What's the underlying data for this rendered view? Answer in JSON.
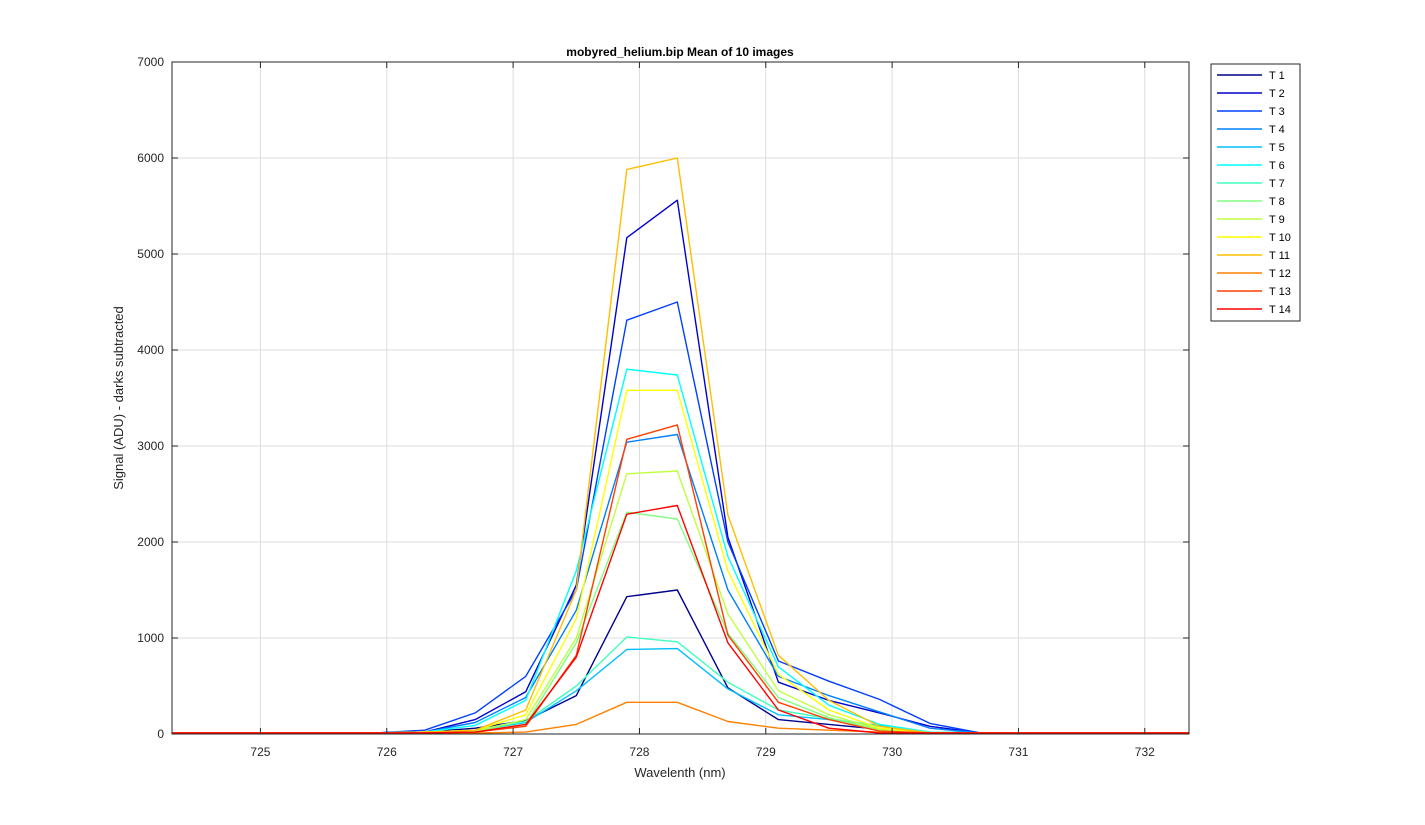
{
  "chart_data": {
    "type": "line",
    "title": "mobyred_helium.bip  Mean of 10 images",
    "xlabel": "Wavelenth (nm)",
    "ylabel": "Signal (ADU) - darks subtracted",
    "xlim": [
      724.3,
      732.35
    ],
    "ylim": [
      0,
      7000
    ],
    "xticks": [
      725,
      726,
      727,
      728,
      729,
      730,
      731,
      732
    ],
    "yticks": [
      0,
      1000,
      2000,
      3000,
      4000,
      5000,
      6000,
      7000
    ],
    "grid": true,
    "legend_position": "outside-top-right",
    "x": [
      724.3,
      724.7,
      725.1,
      725.5,
      725.9,
      726.3,
      726.7,
      727.1,
      727.5,
      727.9,
      728.3,
      728.7,
      729.1,
      729.5,
      729.9,
      730.3,
      730.7,
      731.1,
      731.5,
      731.9,
      732.35
    ],
    "series": [
      {
        "name": "T 1",
        "color": "#00008f",
        "values": [
          10,
          10,
          10,
          10,
          10,
          20,
          60,
          140,
          400,
          1430,
          1500,
          480,
          150,
          100,
          50,
          20,
          10,
          10,
          10,
          10,
          10
        ]
      },
      {
        "name": "T 2",
        "color": "#0000d0",
        "values": [
          10,
          10,
          10,
          10,
          10,
          20,
          150,
          440,
          1550,
          5170,
          5560,
          2050,
          540,
          350,
          220,
          80,
          10,
          10,
          10,
          10,
          10
        ]
      },
      {
        "name": "T 3",
        "color": "#0040ff",
        "values": [
          10,
          10,
          10,
          10,
          10,
          40,
          220,
          600,
          1500,
          4310,
          4500,
          2000,
          760,
          550,
          360,
          110,
          10,
          10,
          10,
          10,
          10
        ]
      },
      {
        "name": "T 4",
        "color": "#0080ff",
        "values": [
          10,
          10,
          10,
          10,
          10,
          20,
          120,
          380,
          1290,
          3040,
          3120,
          1500,
          600,
          400,
          230,
          60,
          10,
          10,
          10,
          10,
          10
        ]
      },
      {
        "name": "T 5",
        "color": "#00bfff",
        "values": [
          10,
          10,
          10,
          10,
          10,
          20,
          40,
          120,
          450,
          880,
          890,
          470,
          200,
          150,
          90,
          20,
          10,
          10,
          10,
          10,
          10
        ]
      },
      {
        "name": "T 6",
        "color": "#00ffff",
        "values": [
          10,
          10,
          10,
          10,
          10,
          20,
          90,
          350,
          1700,
          3800,
          3740,
          1850,
          700,
          300,
          100,
          20,
          10,
          10,
          10,
          10,
          10
        ]
      },
      {
        "name": "T 7",
        "color": "#40ffbf",
        "values": [
          10,
          10,
          10,
          10,
          10,
          20,
          40,
          130,
          500,
          1010,
          960,
          540,
          250,
          160,
          80,
          20,
          10,
          10,
          10,
          10,
          10
        ]
      },
      {
        "name": "T 8",
        "color": "#80ff80",
        "values": [
          10,
          10,
          10,
          10,
          10,
          20,
          30,
          100,
          950,
          2310,
          2240,
          1050,
          380,
          170,
          40,
          10,
          10,
          10,
          10,
          10,
          10
        ]
      },
      {
        "name": "T 9",
        "color": "#bfff40",
        "values": [
          10,
          10,
          10,
          10,
          10,
          20,
          30,
          150,
          1000,
          2710,
          2740,
          1250,
          450,
          200,
          50,
          10,
          10,
          10,
          10,
          10,
          10
        ]
      },
      {
        "name": "T 10",
        "color": "#ffff00",
        "values": [
          10,
          10,
          10,
          10,
          10,
          20,
          40,
          200,
          1200,
          3580,
          3580,
          1700,
          620,
          250,
          60,
          10,
          10,
          10,
          10,
          10,
          10
        ]
      },
      {
        "name": "T 11",
        "color": "#ffbf00",
        "values": [
          10,
          10,
          10,
          10,
          10,
          20,
          40,
          250,
          1500,
          5880,
          6000,
          2280,
          820,
          350,
          80,
          10,
          10,
          10,
          10,
          10,
          10
        ]
      },
      {
        "name": "T 12",
        "color": "#ff8000",
        "values": [
          10,
          10,
          10,
          10,
          10,
          10,
          10,
          20,
          100,
          330,
          330,
          130,
          60,
          40,
          20,
          10,
          10,
          10,
          10,
          10,
          10
        ]
      },
      {
        "name": "T 13",
        "color": "#ff4000",
        "values": [
          10,
          10,
          10,
          10,
          10,
          10,
          20,
          80,
          820,
          3070,
          3220,
          1030,
          330,
          150,
          30,
          10,
          10,
          10,
          10,
          10,
          10
        ]
      },
      {
        "name": "T 14",
        "color": "#ff0000",
        "values": [
          10,
          10,
          10,
          10,
          10,
          10,
          20,
          100,
          800,
          2290,
          2380,
          950,
          250,
          60,
          10,
          10,
          10,
          10,
          10,
          10,
          10
        ]
      }
    ]
  }
}
